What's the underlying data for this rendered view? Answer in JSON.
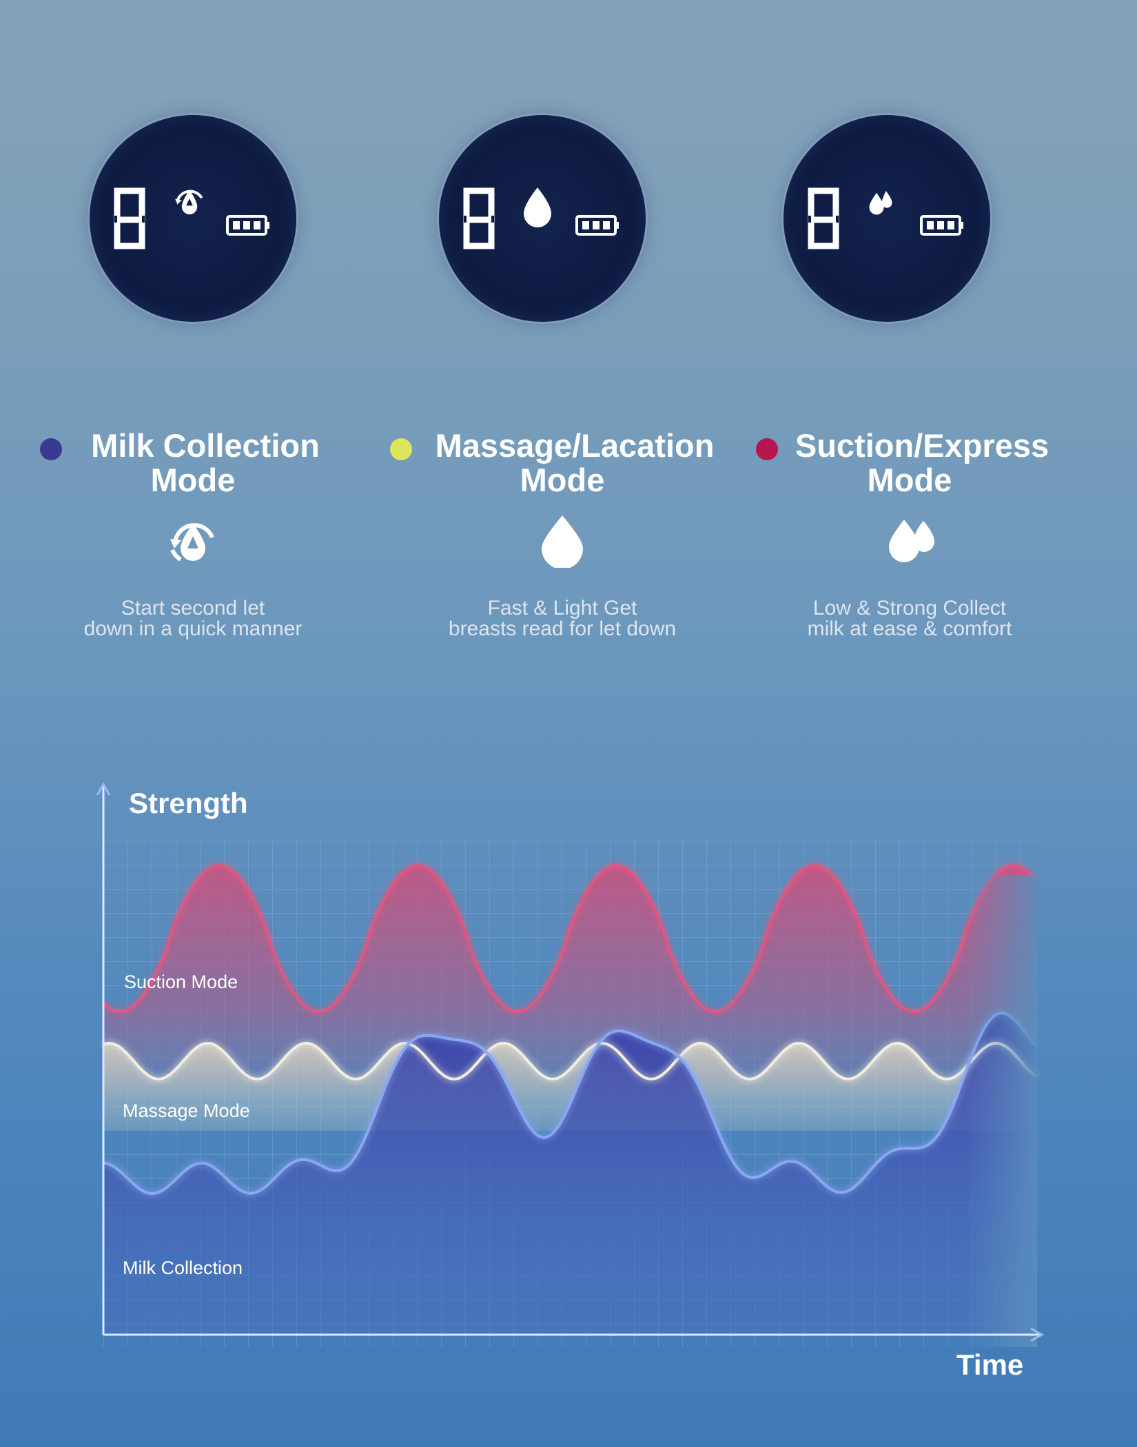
{
  "displays": [
    {
      "digit": "8",
      "icon": "milk-collection-icon"
    },
    {
      "digit": "8",
      "icon": "single-drop-icon"
    },
    {
      "digit": "8",
      "icon": "double-drop-icon"
    }
  ],
  "modes": [
    {
      "title_line1": "Milk Collection",
      "title_line2": "Mode",
      "color": "#3a3a92",
      "icon": "milk-collection-icon",
      "desc_line1": "Start second let",
      "desc_line2": "down in a quick manner"
    },
    {
      "title_line1": "Massage/Lacation",
      "title_line2": "Mode",
      "color": "#dbe65a",
      "icon": "single-drop-icon",
      "desc_line1": "Fast & Light Get",
      "desc_line2": "breasts read for let down"
    },
    {
      "title_line1": "Suction/Express",
      "title_line2": "Mode",
      "color": "#b8164e",
      "icon": "double-drop-icon",
      "desc_line1": "Low & Strong Collect",
      "desc_line2": "milk at ease & comfort"
    }
  ],
  "chart": {
    "ylabel": "Strength",
    "xlabel": "Time",
    "series_labels": [
      "Suction Mode",
      "Massage Mode",
      "Milk Collection"
    ],
    "colors": {
      "suction": "#e2567f",
      "massage": "#f1eedf",
      "collection": "#8aa7f2"
    }
  }
}
